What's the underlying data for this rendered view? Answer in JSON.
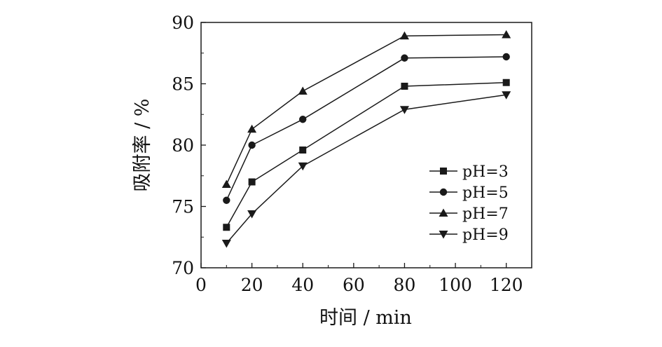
{
  "chart_data": {
    "type": "line",
    "xlabel": "时间 / min",
    "ylabel": "吸附率 / %",
    "xlim": [
      0,
      130
    ],
    "ylim": [
      70,
      90
    ],
    "xticks": [
      0,
      20,
      40,
      60,
      80,
      100,
      120
    ],
    "yticks": [
      70,
      75,
      80,
      85,
      90
    ],
    "x": [
      10,
      20,
      40,
      80,
      120
    ],
    "grid": false,
    "legend_position": "right",
    "series": [
      {
        "name": "pH=3",
        "marker": "square",
        "values": [
          73.3,
          77.0,
          79.6,
          84.8,
          85.1
        ]
      },
      {
        "name": "pH=5",
        "marker": "circle",
        "values": [
          75.5,
          80.0,
          82.1,
          87.1,
          87.2
        ]
      },
      {
        "name": "pH=7",
        "marker": "triangle-up",
        "values": [
          76.8,
          81.3,
          84.4,
          88.9,
          89.0
        ]
      },
      {
        "name": "pH=9",
        "marker": "triangle-down",
        "values": [
          72.0,
          74.4,
          78.3,
          82.9,
          84.1
        ]
      }
    ],
    "colors": {
      "line": "#1a1a1a",
      "axis": "#1a1a1a"
    }
  }
}
